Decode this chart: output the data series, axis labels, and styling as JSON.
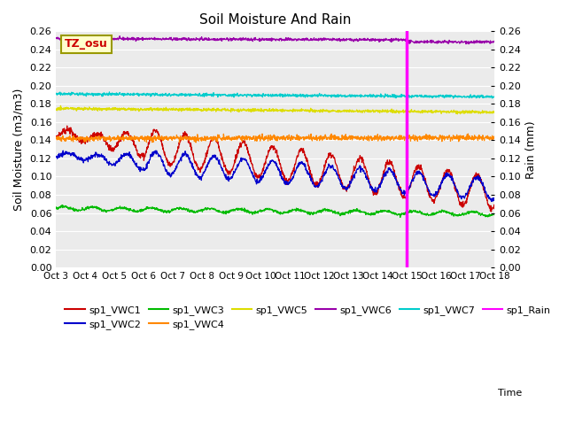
{
  "title": "Soil Moisture And Rain",
  "xlabel": "Time",
  "ylabel_left": "Soil Moisture (m3/m3)",
  "ylabel_right": "Rain (mm)",
  "ylim": [
    0.0,
    0.26
  ],
  "n_days": 15,
  "n_points": 1440,
  "vline_day": 12.0,
  "tz_label": "TZ_osu",
  "bg_color": "#ebebeb",
  "colors": {
    "VWC1": "#cc0000",
    "VWC2": "#0000cc",
    "VWC3": "#00bb00",
    "VWC4": "#ff8800",
    "VWC5": "#dddd00",
    "VWC6": "#9900aa",
    "VWC7": "#00cccc",
    "Rain": "#ff00ff"
  },
  "legend_labels": [
    "sp1_VWC1",
    "sp1_VWC2",
    "sp1_VWC3",
    "sp1_VWC4",
    "sp1_VWC5",
    "sp1_VWC6",
    "sp1_VWC7",
    "sp1_Rain"
  ],
  "xtick_labels": [
    "Oct 3",
    "Oct 4",
    "Oct 5",
    "Oct 6",
    "Oct 7",
    "Oct 8",
    "Oct 9",
    "Oct 10",
    "Oct 11",
    "Oct 12",
    "Oct 13",
    "Oct 14",
    "Oct 15",
    "Oct 16",
    "Oct 17",
    "Oct 18"
  ]
}
